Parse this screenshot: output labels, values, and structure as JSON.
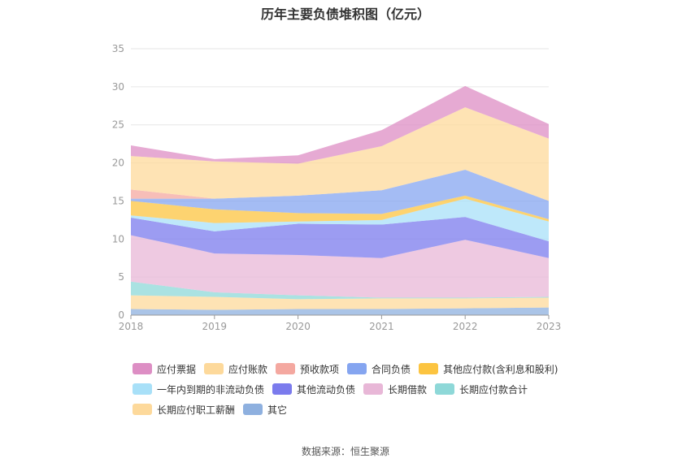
{
  "chart_data": {
    "type": "area",
    "title": "历年主要负债堆积图（亿元）",
    "x": [
      "2018",
      "2019",
      "2020",
      "2021",
      "2022",
      "2023"
    ],
    "ylim": [
      0,
      35
    ],
    "yticks": [
      0,
      5,
      10,
      15,
      20,
      25,
      30,
      35
    ],
    "grid": true,
    "legend_position": "bottom",
    "stack_order": "bottom-to-top",
    "series": [
      {
        "name": "其它",
        "color": "#8eb0df",
        "values": [
          0.8,
          0.7,
          0.8,
          0.8,
          0.9,
          1.0
        ]
      },
      {
        "name": "长期应付职工薪酬",
        "color": "#fdd99b",
        "values": [
          1.8,
          1.7,
          1.3,
          1.4,
          1.3,
          1.3
        ]
      },
      {
        "name": "长期应付款合计",
        "color": "#8ed8d8",
        "values": [
          1.8,
          0.6,
          0.5,
          0.1,
          0.1,
          0.1
        ]
      },
      {
        "name": "长期借款",
        "color": "#e8b7d7",
        "values": [
          6.1,
          5.1,
          5.3,
          5.2,
          7.6,
          5.1
        ]
      },
      {
        "name": "其他流动负债",
        "color": "#7b7bed",
        "values": [
          2.3,
          2.9,
          4.1,
          4.4,
          3.0,
          2.2
        ]
      },
      {
        "name": "一年内到期的非流动负债",
        "color": "#a8e0f8",
        "values": [
          0.3,
          1.1,
          0.3,
          0.6,
          2.4,
          2.6
        ]
      },
      {
        "name": "其他应付款(含利息和股利)",
        "color": "#fcc440",
        "values": [
          1.9,
          1.8,
          1.1,
          0.8,
          0.4,
          0.3
        ]
      },
      {
        "name": "合同负债",
        "color": "#85a5f0",
        "values": [
          0.3,
          1.4,
          2.3,
          3.1,
          3.4,
          2.4
        ]
      },
      {
        "name": "预收款项",
        "color": "#f4a8a0",
        "values": [
          1.2,
          0.0,
          0.0,
          0.0,
          0.0,
          0.0
        ]
      },
      {
        "name": "应付账款",
        "color": "#fdd99b",
        "values": [
          4.4,
          4.9,
          4.2,
          5.8,
          8.2,
          8.2
        ]
      },
      {
        "name": "应付票据",
        "color": "#dd8ec4",
        "values": [
          1.4,
          0.3,
          1.1,
          2.1,
          2.8,
          1.9
        ]
      }
    ]
  },
  "legend": {
    "items": [
      {
        "label": "应付票据",
        "color": "#dd8ec4"
      },
      {
        "label": "应付账款",
        "color": "#fdd99b"
      },
      {
        "label": "预收款项",
        "color": "#f4a8a0"
      },
      {
        "label": "合同负债",
        "color": "#85a5f0"
      },
      {
        "label": "其他应付款(含利息和股利)",
        "color": "#fcc440"
      },
      {
        "label": "一年内到期的非流动负债",
        "color": "#a8e0f8"
      },
      {
        "label": "其他流动负债",
        "color": "#7b7bed"
      },
      {
        "label": "长期借款",
        "color": "#e8b7d7"
      },
      {
        "label": "长期应付款合计",
        "color": "#8ed8d8"
      },
      {
        "label": "长期应付职工薪酬",
        "color": "#fdd99b"
      },
      {
        "label": "其它",
        "color": "#8eb0df"
      }
    ]
  },
  "source": "数据来源：恒生聚源"
}
